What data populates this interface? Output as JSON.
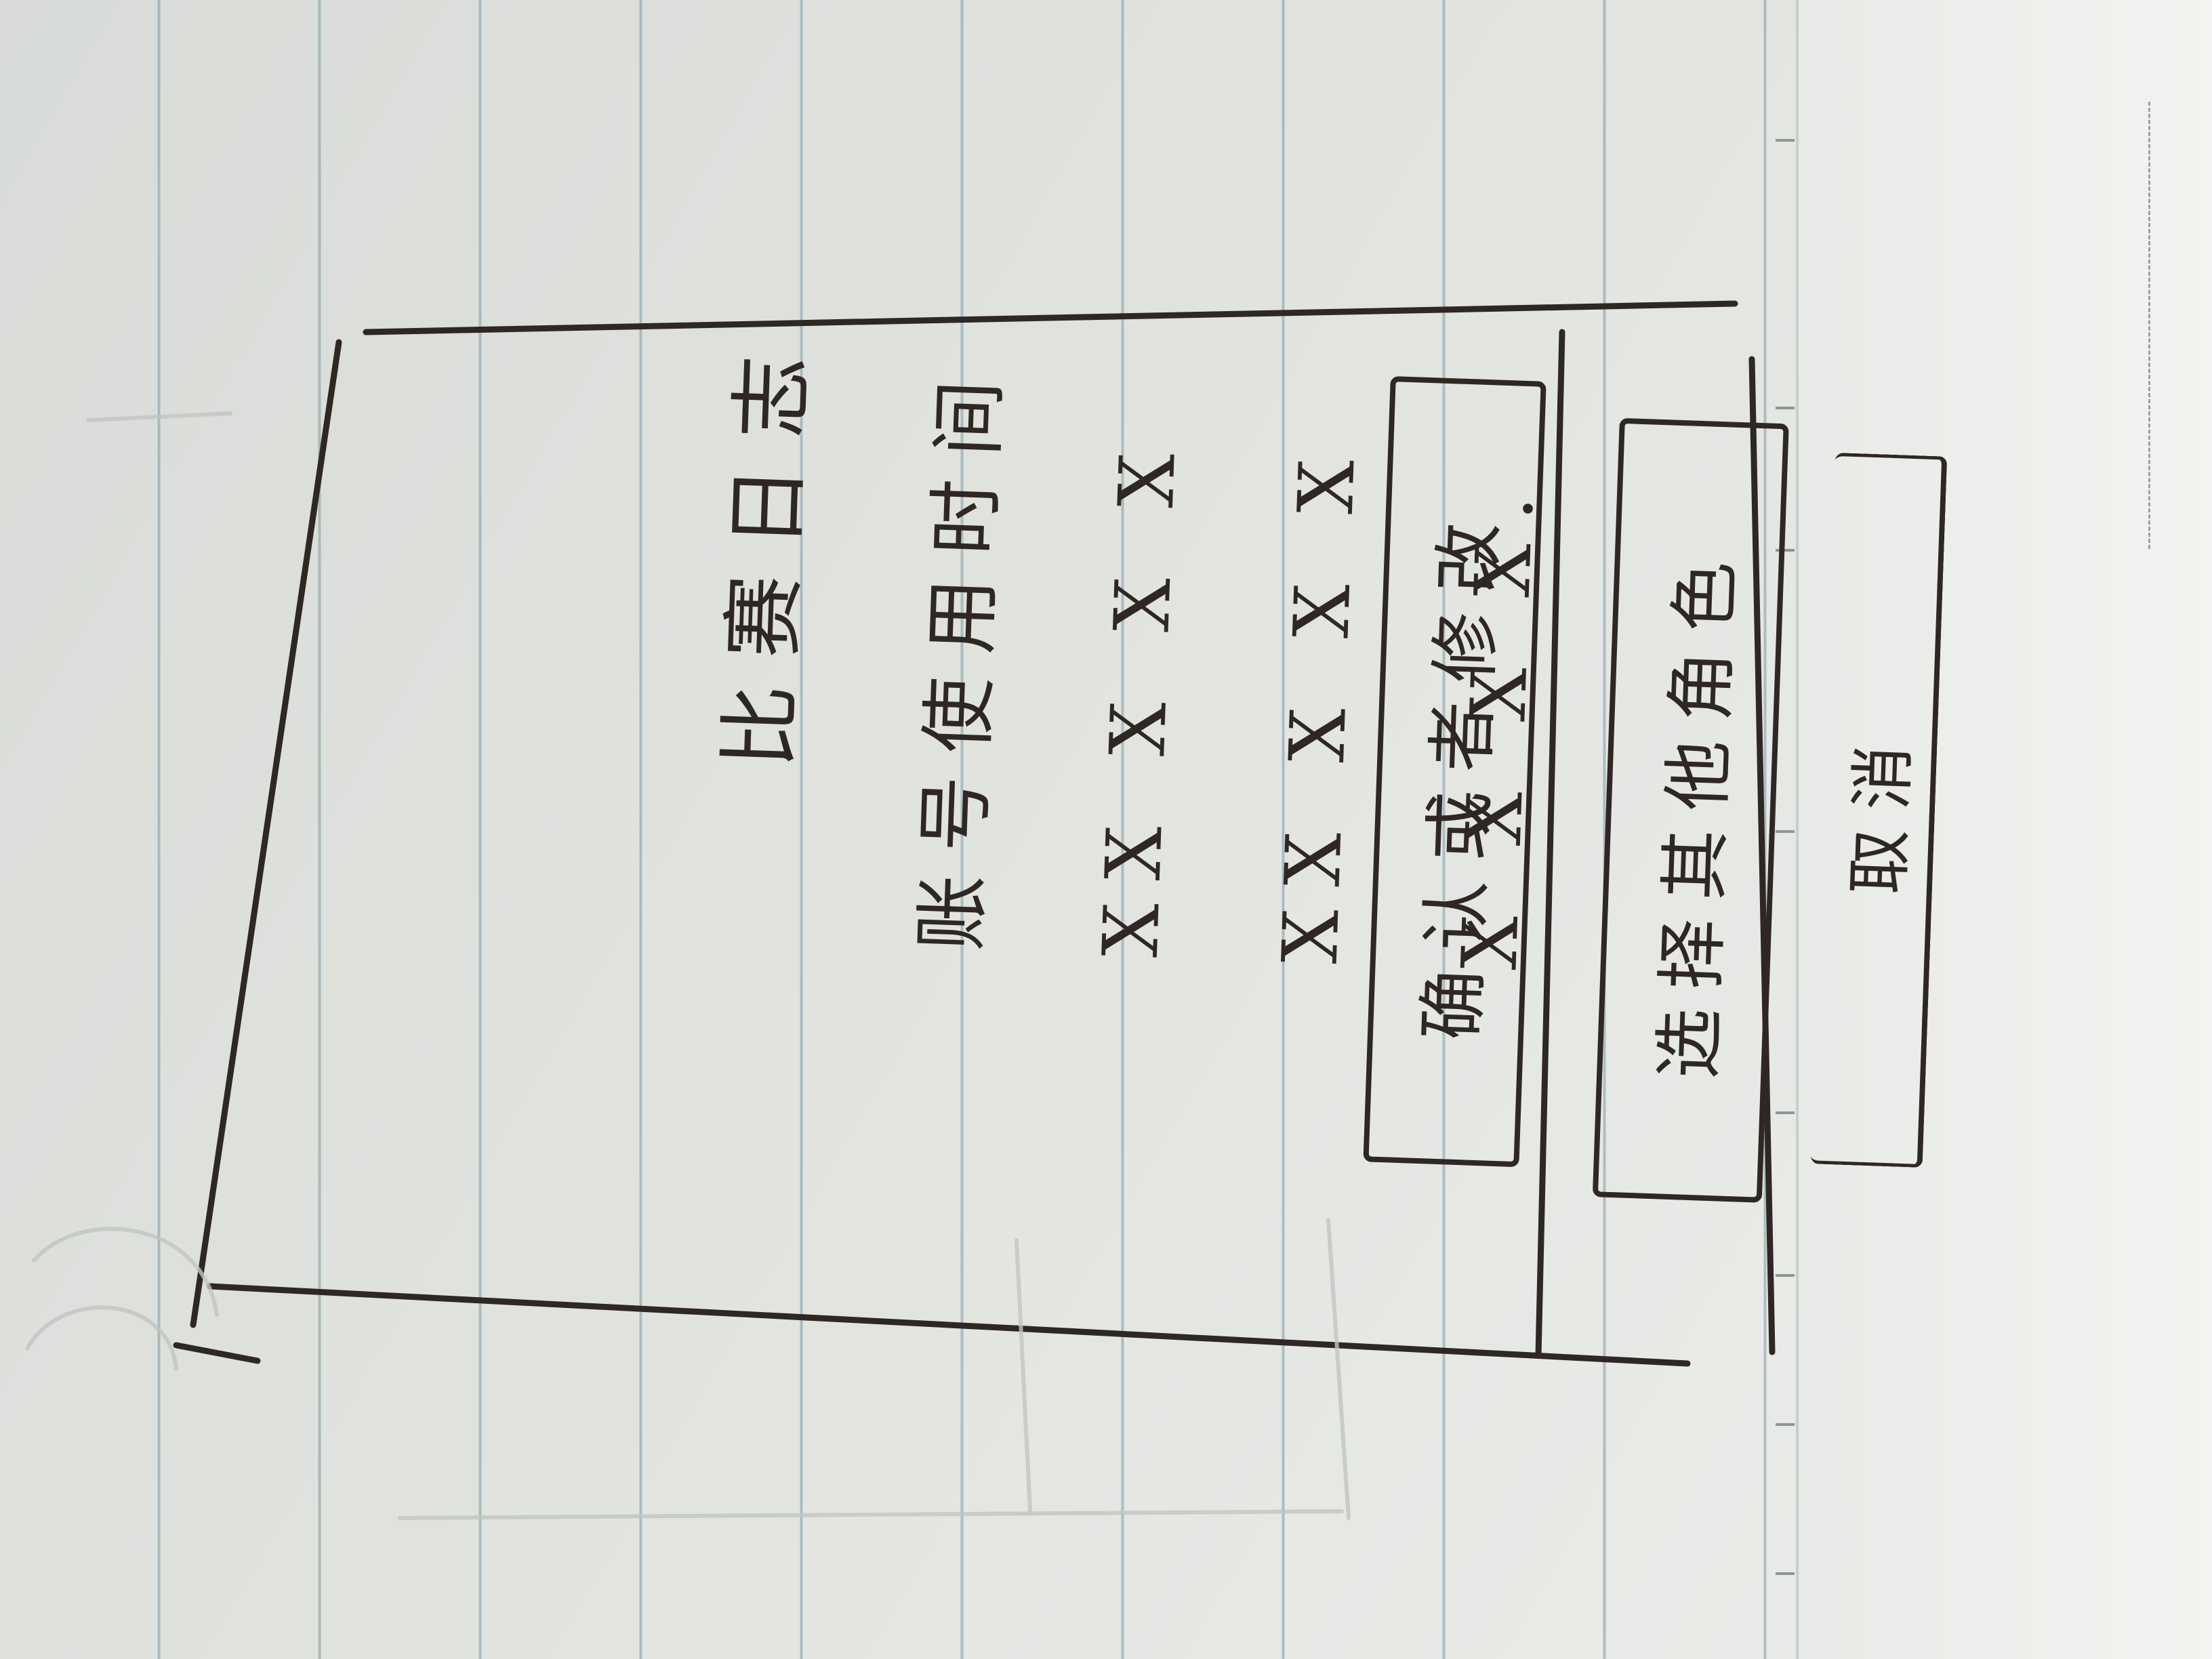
{
  "screen": {
    "header_title": "比赛日志",
    "info_lines": [
      "账号使用时间",
      "XX  X X X",
      "XX  X X X",
      "X X  X  X."
    ],
    "buttons": {
      "confirm": "确认或者修改",
      "choose_role": "选择其他角色",
      "cancel": "取消"
    }
  }
}
